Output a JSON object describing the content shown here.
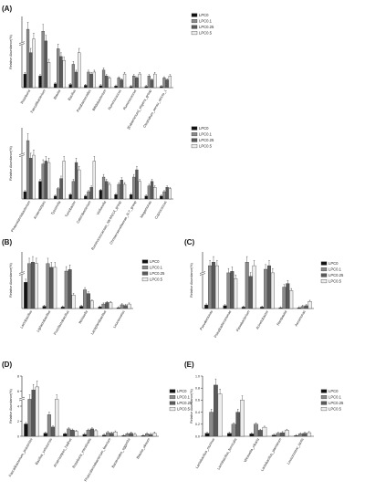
{
  "figure": {
    "legend_series": [
      "LPC0",
      "LPC0.1",
      "LPC0.25",
      "LPC0.5"
    ],
    "series_colors": [
      "#111111",
      "#8a8a8a",
      "#5a5a5a",
      "#ededed"
    ]
  },
  "chart_data": [
    {
      "type": "bar",
      "panel_label": "(A)",
      "ylabel": "Relative Abundance(%)",
      "yaxis_break": true,
      "legend": "right",
      "categories": [
        "Roseburia",
        "Faecalibacterium",
        "Blautia",
        "Bacillus",
        "Parabacteroides",
        "Bifidobacterium",
        "Ruminococcus",
        "Ruminococcus",
        "[Eubacterium]_eligens_group",
        "Clostridium_sensu_stricto_1"
      ],
      "series": [
        {
          "name": "LPC0",
          "values": [
            3.5,
            3.0,
            1.0,
            0.8,
            0.6,
            0.5,
            0.4,
            0.3,
            0.3,
            0.3
          ]
        },
        {
          "name": "LPC0.1",
          "values": [
            15.0,
            14.5,
            10.0,
            6.0,
            4.0,
            4.5,
            2.5,
            3.0,
            3.0,
            2.5
          ]
        },
        {
          "name": "LPC0.25",
          "values": [
            9.0,
            12.0,
            8.0,
            4.0,
            3.5,
            3.0,
            2.0,
            2.5,
            2.0,
            2.0
          ]
        },
        {
          "name": "LPC0.5",
          "values": [
            12.5,
            6.5,
            7.0,
            9.0,
            4.0,
            2.5,
            3.5,
            3.5,
            3.5,
            3.0
          ]
        }
      ]
    },
    {
      "type": "bar",
      "panel_label": "",
      "ylabel": "Relative Abundance(%)",
      "yaxis_break": true,
      "legend": "right",
      "categories": [
        "Phascolarctobacterium",
        "Anaerostipes",
        "Tyzzerella",
        "Turicibacter",
        "Catenibacterium",
        "Veillonella",
        "Ruminococcaceae_NK4A214_group",
        "Christensenellaceae_R-7_group",
        "Megamonas",
        "Coprococcus"
      ],
      "series": [
        {
          "name": "LPC0",
          "values": [
            0.5,
            1.2,
            0.2,
            0.3,
            0.2,
            0.6,
            0.3,
            0.3,
            0.2,
            0.2
          ]
        },
        {
          "name": "LPC0.1",
          "values": [
            4.0,
            2.4,
            0.7,
            1.2,
            0.5,
            1.5,
            1.0,
            1.5,
            0.9,
            0.5
          ]
        },
        {
          "name": "LPC0.25",
          "values": [
            2.8,
            2.6,
            1.4,
            2.5,
            0.8,
            1.2,
            1.3,
            2.0,
            1.2,
            0.8
          ]
        },
        {
          "name": "LPC0.5",
          "values": [
            3.0,
            2.5,
            2.6,
            2.0,
            2.6,
            1.0,
            1.0,
            1.2,
            0.8,
            0.7
          ]
        }
      ]
    },
    {
      "type": "bar",
      "panel_label": "(B)",
      "ylabel": "Relative Abundance(%)",
      "yaxis_break": true,
      "legend": "right",
      "categories": [
        "Lactobacillus",
        "Ligilactobacillus",
        "Fructilactobacillus",
        "Weissella",
        "Lactiplantibacillus",
        "Leuconostoc"
      ],
      "series": [
        {
          "name": "LPC0",
          "values": [
            3.5,
            0.3,
            0.2,
            0.3,
            0.2,
            0.1
          ]
        },
        {
          "name": "LPC0.1",
          "values": [
            6.0,
            6.0,
            5.0,
            2.5,
            0.6,
            0.5
          ]
        },
        {
          "name": "LPC0.25",
          "values": [
            6.2,
            5.5,
            5.2,
            2.0,
            0.8,
            0.4
          ]
        },
        {
          "name": "LPC0.5",
          "values": [
            6.0,
            5.5,
            1.8,
            1.0,
            0.8,
            0.6
          ]
        }
      ]
    },
    {
      "type": "bar",
      "panel_label": "(C)",
      "ylabel": "Relative Abundance(%)",
      "yaxis_break": true,
      "legend": "right",
      "categories": [
        "Pseudomonas",
        "Pseudoalteromonas",
        "Flavobacterium",
        "Acinetobacter",
        "Rombautia",
        "Aeromonas"
      ],
      "series": [
        {
          "name": "LPC0",
          "values": [
            0.5,
            0.4,
            0.2,
            0.2,
            0.1,
            0.1
          ]
        },
        {
          "name": "LPC0.1",
          "values": [
            6.0,
            5.0,
            6.5,
            5.5,
            3.0,
            0.3
          ]
        },
        {
          "name": "LPC0.25",
          "values": [
            6.5,
            5.2,
            4.5,
            6.0,
            3.5,
            0.4
          ]
        },
        {
          "name": "LPC0.5",
          "values": [
            6.0,
            4.2,
            6.0,
            5.0,
            2.5,
            1.0
          ]
        }
      ]
    },
    {
      "type": "bar",
      "panel_label": "(D)",
      "ylabel": "Relative Abundance(%)",
      "yaxis_break": true,
      "legend": "right",
      "yticks": [
        "0",
        "2",
        "4",
        "6",
        "8"
      ],
      "categories": [
        "Faecalibacterium_prausnitzii",
        "Bacillus_velezensis",
        "Anaerostipes_hadrus",
        "Roseburia_intestinalis",
        "Phascolarctobacterium_faecium",
        "Bacteroides_eggerthii",
        "Blautia_obeum"
      ],
      "series": [
        {
          "name": "LPC0",
          "values": [
            2.0,
            0.5,
            0.4,
            0.3,
            0.2,
            0.1,
            0.1
          ]
        },
        {
          "name": "LPC0.1",
          "values": [
            6.0,
            3.5,
            1.2,
            1.0,
            0.6,
            0.4,
            0.4
          ]
        },
        {
          "name": "LPC0.25",
          "values": [
            7.5,
            1.5,
            1.0,
            1.2,
            0.5,
            0.5,
            0.3
          ]
        },
        {
          "name": "LPC0.5",
          "values": [
            8.0,
            6.0,
            0.8,
            0.9,
            0.7,
            0.3,
            0.5
          ]
        }
      ]
    },
    {
      "type": "bar",
      "panel_label": "(E)",
      "ylabel": "Relative Abundance(%)",
      "yaxis_break": false,
      "legend": "right",
      "yticks": [
        "0.0",
        "0.2",
        "0.4",
        "0.6",
        "0.8",
        "1.0"
      ],
      "ylim": [
        0,
        1.0
      ],
      "categories": [
        "Lactobacillus_murinus",
        "Lactobacillus_fornicalis",
        "Weissella_cibaria",
        "Lactobacillus_plantarum",
        "Leuconostoc_lactis"
      ],
      "series": [
        {
          "name": "LPC0",
          "values": [
            0.05,
            0.05,
            0.04,
            0.02,
            0.01
          ]
        },
        {
          "name": "LPC0.1",
          "values": [
            0.4,
            0.2,
            0.2,
            0.05,
            0.04
          ]
        },
        {
          "name": "LPC0.25",
          "values": [
            0.85,
            0.4,
            0.1,
            0.06,
            0.05
          ]
        },
        {
          "name": "LPC0.5",
          "values": [
            0.7,
            0.6,
            0.15,
            0.1,
            0.06
          ]
        }
      ]
    }
  ]
}
